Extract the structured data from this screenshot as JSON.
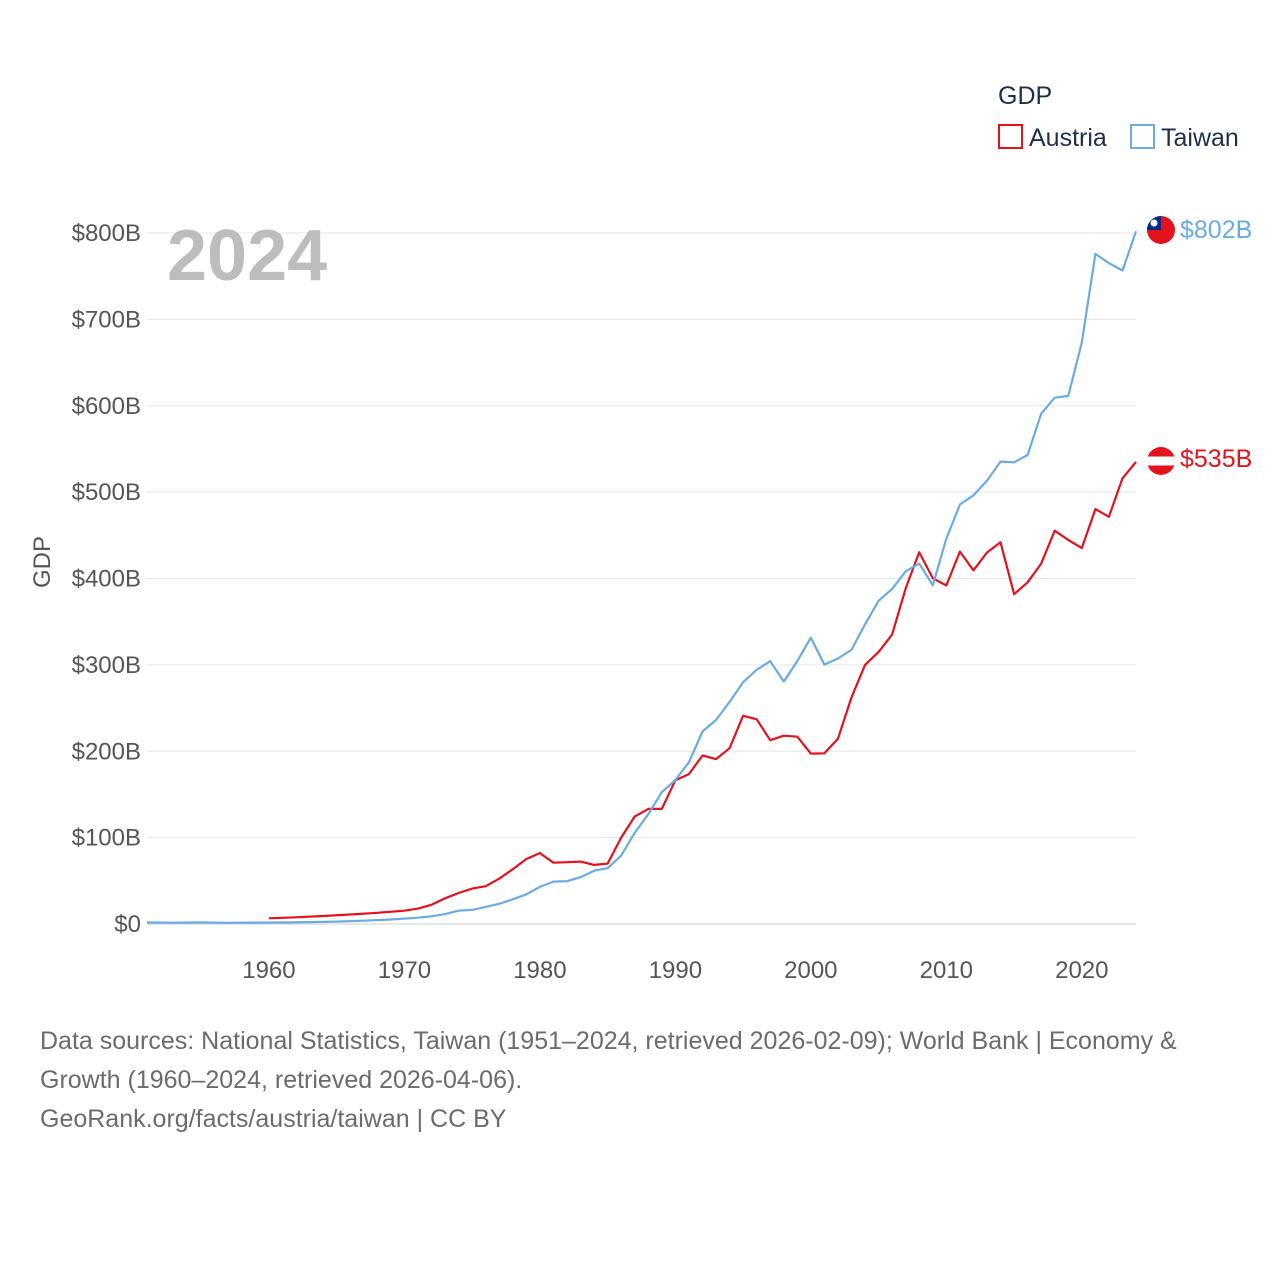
{
  "chart_data": {
    "type": "line",
    "year_label": "2024",
    "ylabel": "GDP",
    "legend_title": "GDP",
    "legend_position": "top-right",
    "ylim": [
      0,
      800
    ],
    "xlim": [
      1951,
      2024
    ],
    "y_ticks": [
      {
        "value": 0,
        "label": "$0"
      },
      {
        "value": 100,
        "label": "$100B"
      },
      {
        "value": 200,
        "label": "$200B"
      },
      {
        "value": 300,
        "label": "$300B"
      },
      {
        "value": 400,
        "label": "$400B"
      },
      {
        "value": 500,
        "label": "$500B"
      },
      {
        "value": 600,
        "label": "$600B"
      },
      {
        "value": 700,
        "label": "$700B"
      },
      {
        "value": 800,
        "label": "$800B"
      }
    ],
    "x_ticks": [
      {
        "value": 1960,
        "label": "1960"
      },
      {
        "value": 1970,
        "label": "1970"
      },
      {
        "value": 1980,
        "label": "1980"
      },
      {
        "value": 1990,
        "label": "1990"
      },
      {
        "value": 2000,
        "label": "2000"
      },
      {
        "value": 2010,
        "label": "2010"
      },
      {
        "value": 2020,
        "label": "2020"
      }
    ],
    "series": [
      {
        "name": "Austria",
        "color": "#e3121c",
        "end_label": "$535B",
        "flag": "austria-flag-icon",
        "x": [
          1960,
          1962,
          1964,
          1966,
          1968,
          1970,
          1971,
          1972,
          1973,
          1974,
          1975,
          1976,
          1977,
          1978,
          1979,
          1980,
          1981,
          1982,
          1983,
          1984,
          1985,
          1986,
          1987,
          1988,
          1989,
          1990,
          1991,
          1992,
          1993,
          1994,
          1995,
          1996,
          1997,
          1998,
          1999,
          2000,
          2001,
          2002,
          2003,
          2004,
          2005,
          2006,
          2007,
          2008,
          2009,
          2010,
          2011,
          2012,
          2013,
          2014,
          2015,
          2016,
          2017,
          2018,
          2019,
          2020,
          2021,
          2022,
          2023,
          2024
        ],
        "values": [
          6.6,
          7.7,
          9.3,
          11,
          13,
          15.4,
          17.8,
          22.2,
          29.8,
          35.9,
          41,
          43.8,
          52.4,
          63.4,
          75.2,
          82.1,
          71,
          71.6,
          72.3,
          68.4,
          69.9,
          100,
          124.4,
          133.3,
          133.3,
          166.5,
          173.6,
          195.1,
          190.9,
          203.5,
          241,
          237,
          212.8,
          218,
          216.8,
          197.3,
          197.6,
          214.4,
          262.3,
          300,
          315,
          335,
          388.7,
          430.3,
          400.2,
          391.9,
          431.1,
          409.4,
          430.1,
          441.9,
          381.8,
          395.6,
          417.3,
          455.3,
          444.6,
          435.2,
          480.4,
          471.4,
          516,
          535
        ]
      },
      {
        "name": "Taiwan",
        "color": "#6aabe3",
        "end_label": "$802B",
        "flag": "taiwan-flag-icon",
        "x": [
          1951,
          1953,
          1955,
          1957,
          1959,
          1961,
          1963,
          1965,
          1967,
          1969,
          1971,
          1972,
          1973,
          1974,
          1975,
          1976,
          1977,
          1978,
          1979,
          1980,
          1981,
          1982,
          1983,
          1984,
          1985,
          1986,
          1987,
          1988,
          1989,
          1990,
          1991,
          1992,
          1993,
          1994,
          1995,
          1996,
          1997,
          1998,
          1999,
          2000,
          2001,
          2002,
          2003,
          2004,
          2005,
          2006,
          2007,
          2008,
          2009,
          2010,
          2011,
          2012,
          2013,
          2014,
          2015,
          2016,
          2017,
          2018,
          2019,
          2020,
          2021,
          2022,
          2023,
          2024
        ],
        "values": [
          1.7,
          1.5,
          1.9,
          1.4,
          1.6,
          1.7,
          2.2,
          2.8,
          3.8,
          5.2,
          7.3,
          8.9,
          11.5,
          15.4,
          16.3,
          19.8,
          23.4,
          28.6,
          34.4,
          42.9,
          49.1,
          49.5,
          54.2,
          61.7,
          64.6,
          79.2,
          105.5,
          127.1,
          152.6,
          166.7,
          187.2,
          222.9,
          236.2,
          257.1,
          279.9,
          294.3,
          304.2,
          280.8,
          304.4,
          331.5,
          300.3,
          307.4,
          317.4,
          346.9,
          374.2,
          387.8,
          408.3,
          417.2,
          392.1,
          446.1,
          485.7,
          496.2,
          513.3,
          535.3,
          534.5,
          543,
          590.8,
          609.3,
          611.4,
          673.2,
          775.8,
          765,
          756.6,
          802
        ]
      }
    ]
  },
  "footer": {
    "line1": "Data sources: National Statistics, Taiwan (1951–2024, retrieved 2026-02-09); World Bank | Economy & Growth (1960–2024, retrieved 2026-04-06).",
    "line2": "GeoRank.org/facts/austria/taiwan | CC BY"
  }
}
